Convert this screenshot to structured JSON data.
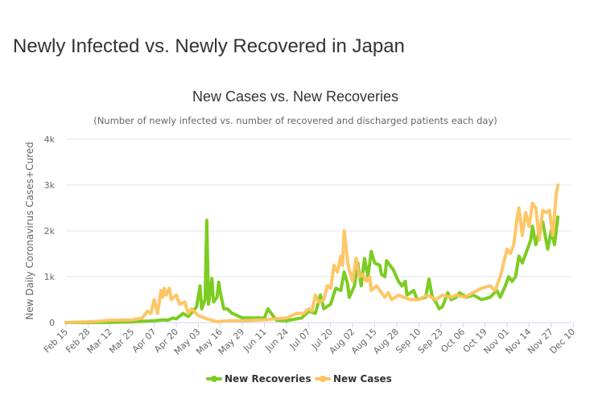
{
  "page": {
    "title": "Newly Infected vs. Newly Recovered in Japan"
  },
  "chart_data": {
    "type": "line",
    "title": "New Cases vs. New Recoveries",
    "subtitle": "(Number of newly infected vs. number of recovered and discharged patients each day)",
    "xlabel": "",
    "ylabel": "New Daily Coronavirus Cases+Cured",
    "ylim": [
      0,
      4000
    ],
    "yticks": [
      {
        "value": 0,
        "label": "0"
      },
      {
        "value": 1000,
        "label": "1k"
      },
      {
        "value": 2000,
        "label": "2k"
      },
      {
        "value": 3000,
        "label": "3k"
      },
      {
        "value": 4000,
        "label": "4k"
      }
    ],
    "xticks": [
      "Feb 15",
      "Feb 28",
      "Mar 12",
      "Mar 25",
      "Apr 07",
      "Apr 20",
      "May 03",
      "May 16",
      "May 29",
      "Jun 11",
      "Jun 24",
      "Jul 07",
      "Jul 20",
      "Aug 02",
      "Aug 15",
      "Aug 28",
      "Sep 10",
      "Sep 23",
      "Oct 06",
      "Oct 19",
      "Nov 01",
      "Nov 14",
      "Nov 27",
      "Dec 10"
    ],
    "grid": true,
    "legend": "bottom-center",
    "series": [
      {
        "name": "New Recoveries",
        "color": "#7ccc21",
        "points": [
          [
            0,
            0
          ],
          [
            10,
            0
          ],
          [
            20,
            2
          ],
          [
            26,
            5
          ],
          [
            39,
            15
          ],
          [
            52,
            40
          ],
          [
            57,
            60
          ],
          [
            60,
            50
          ],
          [
            63,
            100
          ],
          [
            65,
            80
          ],
          [
            69,
            200
          ],
          [
            72,
            130
          ],
          [
            75,
            250
          ],
          [
            77,
            350
          ],
          [
            79,
            800
          ],
          [
            80,
            300
          ],
          [
            82,
            500
          ],
          [
            83,
            2230
          ],
          [
            84,
            400
          ],
          [
            85,
            650
          ],
          [
            86,
            960
          ],
          [
            87,
            450
          ],
          [
            89,
            550
          ],
          [
            90,
            880
          ],
          [
            91,
            650
          ],
          [
            93,
            300
          ],
          [
            95,
            300
          ],
          [
            98,
            200
          ],
          [
            104,
            100
          ],
          [
            110,
            100
          ],
          [
            117,
            100
          ],
          [
            119,
            300
          ],
          [
            124,
            50
          ],
          [
            130,
            40
          ],
          [
            136,
            80
          ],
          [
            139,
            100
          ],
          [
            143,
            250
          ],
          [
            147,
            200
          ],
          [
            150,
            600
          ],
          [
            152,
            300
          ],
          [
            156,
            400
          ],
          [
            159,
            750
          ],
          [
            162,
            700
          ],
          [
            164,
            1100
          ],
          [
            166,
            850
          ],
          [
            167,
            550
          ],
          [
            170,
            800
          ],
          [
            172,
            1300
          ],
          [
            174,
            800
          ],
          [
            176,
            1400
          ],
          [
            178,
            1000
          ],
          [
            180,
            1550
          ],
          [
            182,
            1300
          ],
          [
            185,
            1250
          ],
          [
            186,
            1050
          ],
          [
            188,
            1000
          ],
          [
            189,
            1350
          ],
          [
            191,
            1250
          ],
          [
            193,
            1150
          ],
          [
            196,
            900
          ],
          [
            198,
            800
          ],
          [
            200,
            900
          ],
          [
            201,
            600
          ],
          [
            205,
            700
          ],
          [
            207,
            500
          ],
          [
            212,
            550
          ],
          [
            214,
            950
          ],
          [
            216,
            550
          ],
          [
            218,
            450
          ],
          [
            220,
            300
          ],
          [
            222,
            350
          ],
          [
            225,
            650
          ],
          [
            227,
            500
          ],
          [
            230,
            550
          ],
          [
            232,
            650
          ],
          [
            236,
            550
          ],
          [
            240,
            600
          ],
          [
            245,
            500
          ],
          [
            250,
            550
          ],
          [
            254,
            700
          ],
          [
            256,
            550
          ],
          [
            259,
            800
          ],
          [
            261,
            1000
          ],
          [
            263,
            900
          ],
          [
            265,
            1000
          ],
          [
            267,
            1450
          ],
          [
            269,
            1300
          ],
          [
            272,
            1600
          ],
          [
            274,
            1800
          ],
          [
            275,
            2100
          ],
          [
            277,
            1700
          ],
          [
            279,
            2000
          ],
          [
            281,
            2200
          ],
          [
            284,
            1600
          ],
          [
            286,
            2000
          ],
          [
            288,
            1700
          ],
          [
            290,
            2300
          ]
        ]
      },
      {
        "name": "New Cases",
        "color": "#fec35f",
        "points": [
          [
            0,
            0
          ],
          [
            13,
            15
          ],
          [
            20,
            30
          ],
          [
            26,
            50
          ],
          [
            39,
            60
          ],
          [
            45,
            100
          ],
          [
            48,
            250
          ],
          [
            50,
            200
          ],
          [
            52,
            500
          ],
          [
            54,
            200
          ],
          [
            56,
            700
          ],
          [
            57,
            550
          ],
          [
            58,
            750
          ],
          [
            59,
            600
          ],
          [
            61,
            750
          ],
          [
            62,
            500
          ],
          [
            65,
            600
          ],
          [
            67,
            400
          ],
          [
            70,
            450
          ],
          [
            72,
            200
          ],
          [
            74,
            300
          ],
          [
            78,
            150
          ],
          [
            83,
            80
          ],
          [
            86,
            50
          ],
          [
            89,
            20
          ],
          [
            96,
            40
          ],
          [
            104,
            40
          ],
          [
            117,
            60
          ],
          [
            130,
            100
          ],
          [
            136,
            200
          ],
          [
            140,
            200
          ],
          [
            143,
            300
          ],
          [
            145,
            250
          ],
          [
            147,
            600
          ],
          [
            149,
            450
          ],
          [
            152,
            500
          ],
          [
            154,
            800
          ],
          [
            156,
            750
          ],
          [
            158,
            1250
          ],
          [
            160,
            1100
          ],
          [
            162,
            1450
          ],
          [
            163,
            1250
          ],
          [
            164,
            2000
          ],
          [
            166,
            1350
          ],
          [
            167,
            1150
          ],
          [
            169,
            900
          ],
          [
            171,
            1400
          ],
          [
            173,
            1000
          ],
          [
            175,
            1050
          ],
          [
            177,
            900
          ],
          [
            179,
            1000
          ],
          [
            180,
            700
          ],
          [
            183,
            800
          ],
          [
            185,
            700
          ],
          [
            188,
            550
          ],
          [
            190,
            650
          ],
          [
            192,
            500
          ],
          [
            196,
            600
          ],
          [
            199,
            550
          ],
          [
            203,
            500
          ],
          [
            208,
            500
          ],
          [
            213,
            600
          ],
          [
            218,
            500
          ],
          [
            222,
            600
          ],
          [
            227,
            550
          ],
          [
            230,
            600
          ],
          [
            235,
            550
          ],
          [
            240,
            650
          ],
          [
            245,
            750
          ],
          [
            250,
            800
          ],
          [
            253,
            700
          ],
          [
            256,
            1000
          ],
          [
            258,
            1300
          ],
          [
            260,
            1600
          ],
          [
            262,
            1500
          ],
          [
            264,
            1700
          ],
          [
            266,
            2300
          ],
          [
            267,
            2500
          ],
          [
            269,
            1900
          ],
          [
            271,
            2400
          ],
          [
            273,
            2100
          ],
          [
            275,
            2600
          ],
          [
            277,
            2500
          ],
          [
            279,
            1800
          ],
          [
            281,
            2450
          ],
          [
            283,
            2400
          ],
          [
            285,
            2450
          ],
          [
            287,
            1900
          ],
          [
            289,
            2800
          ],
          [
            290,
            3000
          ]
        ]
      }
    ]
  }
}
